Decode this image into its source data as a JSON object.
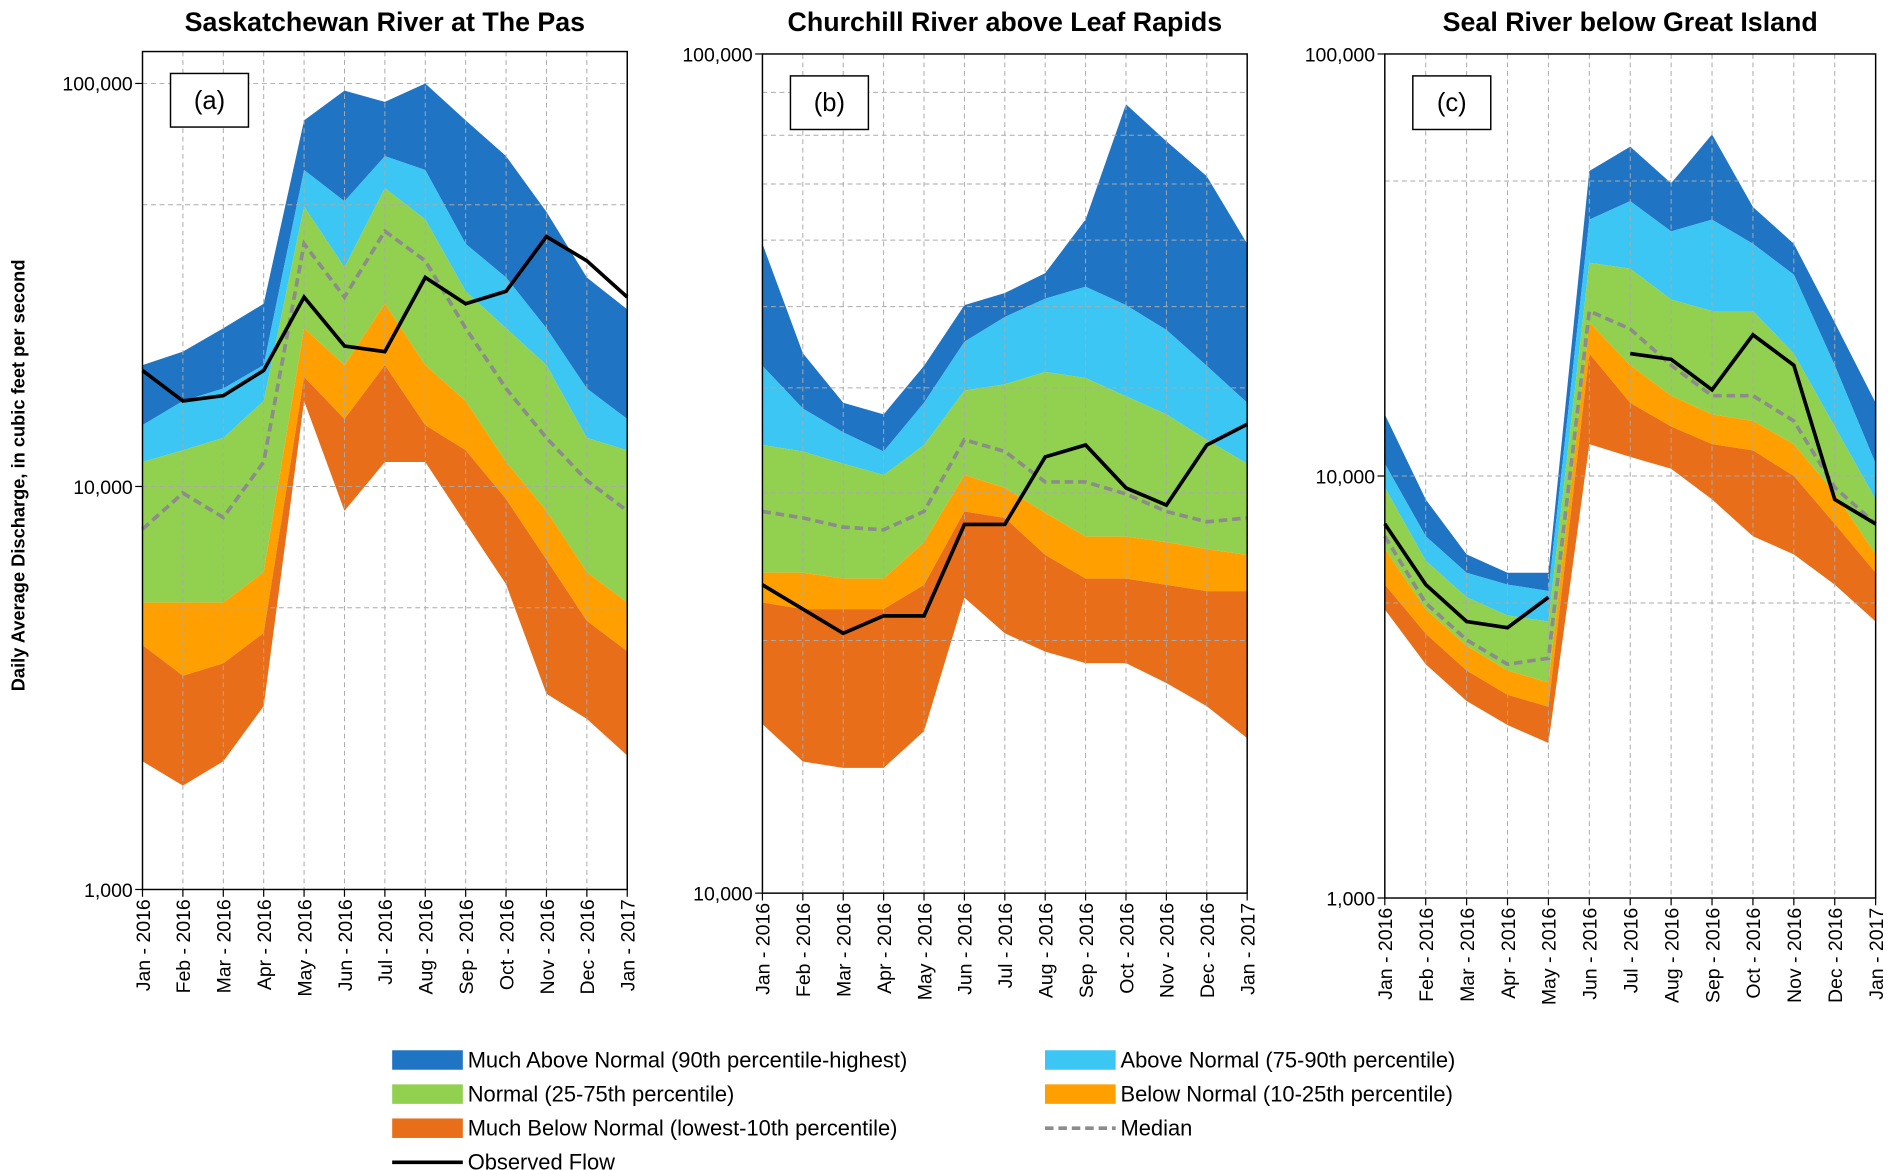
{
  "y_label": "Daily Average Discharge, in cubic feet per second",
  "legend": [
    {
      "name": "Much Above Normal (90th percentile-highest)",
      "color": "#1f74c4"
    },
    {
      "name": "Above Normal (75-90th percentile)",
      "color": "#3cc6f4"
    },
    {
      "name": "Normal (25-75th percentile)",
      "color": "#92d050"
    },
    {
      "name": "Below Normal (10-25th percentile)",
      "color": "#ffa000"
    },
    {
      "name": "Much Below Normal (lowest-10th percentile)",
      "color": "#e86e1a"
    },
    {
      "name": "Median",
      "color": "#8c8c8c"
    },
    {
      "name": "Observed Flow",
      "color": "#000000"
    }
  ],
  "chart_data": [
    {
      "type": "area",
      "title": "Saskatchewan River at The Pas",
      "panel_label": "(a)",
      "log_scale": true,
      "grid": true,
      "categories": [
        "Jan - 2016",
        "Feb - 2016",
        "Mar - 2016",
        "Apr - 2016",
        "May - 2016",
        "Jun - 2016",
        "Jul - 2016",
        "Aug - 2016",
        "Sep - 2016",
        "Oct - 2016",
        "Nov - 2016",
        "Dec - 2016",
        "Jan - 2017"
      ],
      "ylim": [
        1000,
        120000
      ],
      "yticks": [
        {
          "value": 1000,
          "label": "1,000"
        },
        {
          "value": 10000,
          "label": "10,000"
        },
        {
          "value": 100000,
          "label": "100,000"
        }
      ],
      "minor_grid": [
        5000,
        50000
      ],
      "bands": [
        {
          "values": [
            20000,
            21600,
            24700,
            28400,
            81000,
            96000,
            90000,
            100000,
            81000,
            66000,
            48000,
            33000,
            27500
          ]
        },
        {
          "values": [
            14200,
            16300,
            17500,
            20000,
            61000,
            51000,
            66000,
            61000,
            40000,
            33000,
            24700,
            17500,
            14700
          ]
        },
        {
          "values": [
            11500,
            12300,
            13200,
            16300,
            49500,
            35000,
            55000,
            46000,
            30500,
            24700,
            20000,
            13200,
            12300
          ]
        },
        {
          "values": [
            5150,
            5150,
            5150,
            6130,
            24700,
            20000,
            28400,
            20000,
            16300,
            11500,
            8700,
            6130,
            5150
          ]
        },
        {
          "values": [
            4040,
            3390,
            3640,
            4330,
            18700,
            14700,
            20000,
            14200,
            12300,
            9300,
            6580,
            4640,
            3900
          ],
          "low": [
            2080,
            1810,
            2080,
            2850,
            16300,
            8700,
            11500,
            11500,
            8100,
            5720,
            3060,
            2650,
            2150
          ]
        }
      ],
      "median": [
        7830,
        9630,
        8380,
        11500,
        40000,
        29500,
        43000,
        36300,
        24700,
        17500,
        13200,
        10350,
        8700
      ],
      "observed": [
        19400,
        16300,
        16800,
        19400,
        29500,
        22300,
        21600,
        33000,
        28400,
        30500,
        41700,
        36300,
        29500
      ]
    },
    {
      "type": "area",
      "title": "Churchill River above Leaf Rapids",
      "panel_label": "(b)",
      "log_scale": true,
      "grid": true,
      "categories": [
        "Jan - 2016",
        "Feb - 2016",
        "Mar - 2016",
        "Apr - 2016",
        "May - 2016",
        "Jun - 2016",
        "Jul - 2016",
        "Aug - 2016",
        "Sep - 2016",
        "Oct - 2016",
        "Nov - 2016",
        "Dec - 2016",
        "Jan - 2017"
      ],
      "ylim": [
        10000,
        100000
      ],
      "yticks": [
        {
          "value": 10000,
          "label": "10,000"
        },
        {
          "value": 100000,
          "label": "100,000"
        }
      ],
      "minor_grid": [
        20000,
        30000,
        40000,
        50000,
        60000,
        70000,
        80000,
        90000
      ],
      "bands": [
        {
          "values": [
            59400,
            44000,
            38400,
            37200,
            42500,
            50200,
            51900,
            54800,
            63500,
            87100,
            78700,
            71500,
            59400
          ]
        },
        {
          "values": [
            42500,
            37800,
            35400,
            33600,
            38400,
            45400,
            48600,
            51100,
            52800,
            50200,
            46900,
            42500,
            38400
          ]
        },
        {
          "values": [
            34200,
            33600,
            32500,
            31500,
            34200,
            39700,
            40400,
            41800,
            41100,
            39100,
            37200,
            34700,
            32500
          ]
        },
        {
          "values": [
            24100,
            24100,
            23700,
            23700,
            26200,
            31500,
            30400,
            28400,
            26600,
            26600,
            26200,
            25700,
            25300
          ]
        },
        {
          "values": [
            22200,
            21800,
            21800,
            21800,
            23300,
            28500,
            28000,
            25300,
            23700,
            23700,
            23300,
            22900,
            22900
          ],
          "low": [
            15900,
            14350,
            14100,
            14100,
            15600,
            22500,
            20400,
            19400,
            18800,
            18800,
            17800,
            16700,
            15300
          ]
        }
      ],
      "median": [
        28500,
        28000,
        27300,
        27100,
        28500,
        34700,
        33600,
        30900,
        30900,
        29900,
        28500,
        27700,
        28000
      ],
      "observed": [
        23300,
        21800,
        20400,
        21400,
        21400,
        27500,
        27500,
        33100,
        34200,
        30400,
        29000,
        34200,
        36200
      ]
    },
    {
      "type": "area",
      "title": "Seal River below Great Island",
      "panel_label": "(c)",
      "log_scale": true,
      "grid": true,
      "categories": [
        "Jan - 2016",
        "Feb - 2016",
        "Mar - 2016",
        "Apr - 2016",
        "May - 2016",
        "Jun - 2016",
        "Jul - 2016",
        "Aug - 2016",
        "Sep - 2016",
        "Oct - 2016",
        "Nov - 2016",
        "Dec - 2016",
        "Jan - 2017"
      ],
      "ylim": [
        1000,
        100000
      ],
      "yticks": [
        {
          "value": 1000,
          "label": "1,000"
        },
        {
          "value": 10000,
          "label": "10,000"
        },
        {
          "value": 100000,
          "label": "100,000"
        }
      ],
      "minor_grid": [
        5000,
        50000
      ],
      "bands": [
        {
          "values": [
            14000,
            8800,
            6520,
            5900,
            5900,
            52800,
            60300,
            49400,
            64500,
            43400,
            35500,
            23100,
            14900
          ]
        },
        {
          "values": [
            10700,
            7200,
            5900,
            5530,
            5340,
            40500,
            44800,
            38000,
            40500,
            35500,
            30000,
            18300,
            10700
          ]
        },
        {
          "values": [
            9400,
            6300,
            5160,
            4670,
            4520,
            32000,
            31000,
            26200,
            24600,
            24600,
            19500,
            13100,
            8800
          ]
        },
        {
          "values": [
            6720,
            4830,
            3960,
            3460,
            3240,
            23100,
            18300,
            15500,
            14000,
            13500,
            11900,
            9100,
            6520
          ]
        },
        {
          "values": [
            5530,
            4230,
            3460,
            3030,
            2840,
            19500,
            14900,
            13100,
            11900,
            11500,
            10000,
            7700,
            5900
          ],
          "low": [
            4830,
            3580,
            2930,
            2570,
            2330,
            11900,
            11100,
            10400,
            8800,
            7200,
            6520,
            5530,
            4520
          ]
        }
      ],
      "median": [
        7200,
        5000,
        4090,
        3580,
        3700,
        24600,
        22300,
        18300,
        15500,
        15500,
        13500,
        9400,
        7700
      ],
      "observed": [
        7700,
        5530,
        4520,
        4370,
        5160,
        null,
        19500,
        18900,
        16000,
        21600,
        18300,
        8800,
        7700
      ]
    }
  ]
}
